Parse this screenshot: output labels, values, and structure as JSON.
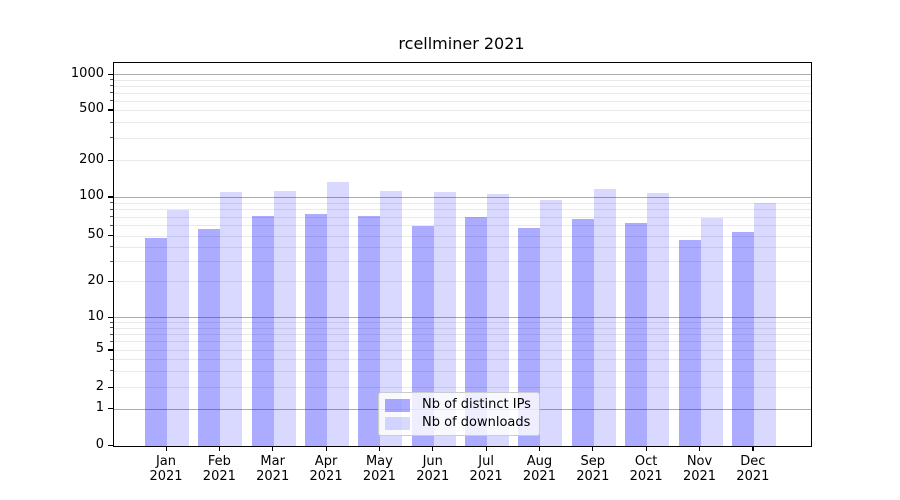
{
  "chart_data": {
    "type": "bar",
    "title": "rcellminer 2021",
    "categories": [
      "Jan 2021",
      "Feb 2021",
      "Mar 2021",
      "Apr 2021",
      "May 2021",
      "Jun 2021",
      "Jul 2021",
      "Aug 2021",
      "Sep 2021",
      "Oct 2021",
      "Nov 2021",
      "Dec 2021"
    ],
    "series": [
      {
        "name": "Nb of distinct IPs",
        "color": "rgba(0,0,255,0.33)",
        "values": [
          48,
          57,
          72,
          74,
          72,
          60,
          70,
          58,
          68,
          63,
          46,
          54
        ]
      },
      {
        "name": "Nb of downloads",
        "color": "rgba(0,0,255,0.15)",
        "values": [
          80,
          110,
          112,
          134,
          113,
          110,
          107,
          95,
          116,
          108,
          69,
          90
        ]
      }
    ],
    "xlabel": "",
    "ylabel": "",
    "yaxis": {
      "scale": "symlog",
      "tick_labels": [
        0,
        1,
        2,
        5,
        10,
        20,
        50,
        100,
        200,
        500,
        1000
      ],
      "major_grid_values": [
        1,
        10,
        100,
        1000
      ],
      "minor_grid_mantissas": [
        2,
        3,
        4,
        5,
        6,
        7,
        8,
        9
      ],
      "ylim_top": 1150
    },
    "grid": "horizontal",
    "legend_position": "inside lower-center"
  },
  "colors": {
    "grid_major": "#ababab",
    "grid_minor": "#e9e9e9",
    "axis_spine": "#000000",
    "legend_border": "#cccccc",
    "legend_background": "rgba(255,255,255,0.8)",
    "title_text": "#000000"
  }
}
